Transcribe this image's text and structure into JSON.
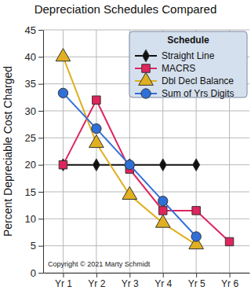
{
  "chart_data": {
    "type": "line",
    "title": "Depreciation Schedules Compared",
    "y_label": "Percent Depreciable Cost Charged",
    "categories": [
      "Yr 1",
      "Yr 2",
      "Yr 3",
      "Yr 4",
      "Yr 5",
      "Yr 6"
    ],
    "series": [
      {
        "name": "Straight Line",
        "color": "#111111",
        "marker": "diamond",
        "values": [
          20,
          20,
          20,
          20,
          20,
          null
        ]
      },
      {
        "name": "MACRS",
        "color": "#e0245e",
        "marker": "square",
        "values": [
          20,
          32,
          19.2,
          11.52,
          11.52,
          5.76
        ]
      },
      {
        "name": "Dbl Decl Balance",
        "color": "#e0b020",
        "marker": "triangle",
        "values": [
          40,
          24,
          14.4,
          9.2,
          5.2,
          null
        ]
      },
      {
        "name": "Sum of Yrs Digits",
        "color": "#2f6fd8",
        "marker": "circle",
        "values": [
          33.3,
          26.7,
          20,
          13.3,
          6.7,
          null
        ]
      }
    ],
    "ylim": [
      0,
      45
    ],
    "yticks": [
      0,
      5,
      10,
      15,
      20,
      25,
      30,
      35,
      40,
      45
    ],
    "grid": true,
    "legend": "upper right",
    "legend_title": "Schedule",
    "annotation": "Copyright © 2021 Marty Schmidt"
  }
}
